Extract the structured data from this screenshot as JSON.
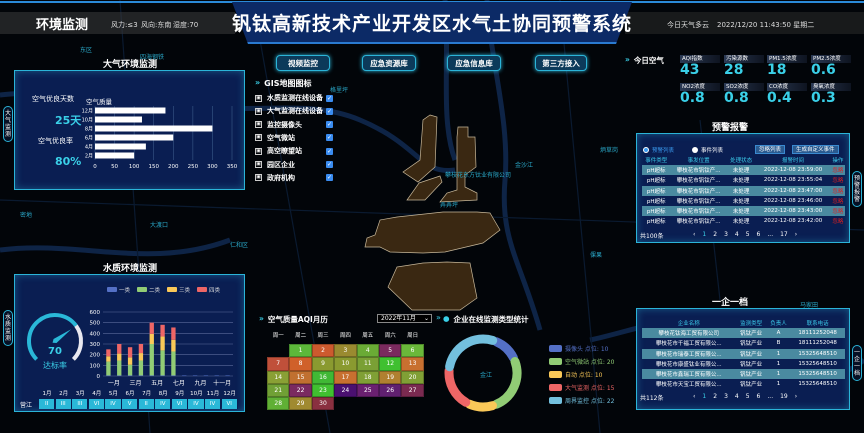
{
  "header": {
    "section_title": "环境监测",
    "wind_force": "风力:≤3",
    "wind_dir": "风向:东南",
    "humidity": "湿度:70",
    "title": "钒钛高新技术产业开发区水气土协同预警系统",
    "weather": "今日天气多云",
    "datetime": "2022/12/20 11:43:50 星期二"
  },
  "nav": [
    "视频监控",
    "应急资源库",
    "应急信息库",
    "第三方接入"
  ],
  "gis": {
    "title": "GIS地图图标",
    "layers": [
      {
        "label": "水质监测在线设备",
        "checked": true
      },
      {
        "label": "大气监测在线设备",
        "checked": true
      },
      {
        "label": "监控摄像头",
        "checked": true
      },
      {
        "label": "空气微站",
        "checked": true
      },
      {
        "label": "高空瞭望站",
        "checked": true
      },
      {
        "label": "园区企业",
        "checked": true
      },
      {
        "label": "政府机构",
        "checked": true
      }
    ]
  },
  "air_panel": {
    "title": "大气环境监测",
    "side_tab": "大气监测",
    "good_days_label": "空气优良天数",
    "good_days": "25天",
    "good_rate_label": "空气优良率",
    "good_rate": "80%",
    "chart_title": "空气质量"
  },
  "water_panel": {
    "title": "水质环境监测",
    "side_tab": "水质监测",
    "gauge_value": 70,
    "gauge_label": "达标率",
    "river": "营江",
    "months": [
      "1月",
      "2月",
      "3月",
      "4月",
      "5月",
      "6月",
      "7月",
      "8月",
      "9月",
      "10月",
      "11月",
      "12月"
    ],
    "grades": [
      "II",
      "III",
      "III",
      "VI",
      "IV",
      "V",
      "II",
      "IV",
      "VI",
      "IV",
      "IV",
      "VI"
    ]
  },
  "today_air": {
    "title": "今日空气",
    "metrics": [
      {
        "label": "AQI指数",
        "value": "43"
      },
      {
        "label": "污染源数",
        "value": "28"
      },
      {
        "label": "PM1.5浓度",
        "value": "18"
      },
      {
        "label": "PM2.5浓度",
        "value": "0.6"
      },
      {
        "label": "NO2浓度",
        "value": "0.8"
      },
      {
        "label": "SO2浓度",
        "value": "0.8"
      },
      {
        "label": "CO浓度",
        "value": "0.4"
      },
      {
        "label": "臭氧浓度",
        "value": "0.3"
      }
    ]
  },
  "alarm": {
    "title": "预警报警",
    "side_tab": "预警报警",
    "radio_alarm": "预警列表",
    "radio_event": "事件列表",
    "btn_ignore": "忽略列表",
    "btn_custom": "生成自定义事件",
    "columns": [
      "事件类型",
      "事发位置",
      "处理状态",
      "报警时间",
      "操作"
    ],
    "rows": [
      [
        "pH超标",
        "攀枝花市钒钛产...",
        "未处理",
        "2022-12-08 23:59:00",
        "忽略"
      ],
      [
        "pH超标",
        "攀枝花市钒钛产...",
        "未处理",
        "2022-12-08 23:55:04",
        "忽略"
      ],
      [
        "pH超标",
        "攀枝花市钒钛产...",
        "未处理",
        "2022-12-08 23:47:00",
        "忽略"
      ],
      [
        "pH超标",
        "攀枝花市钒钛产...",
        "未处理",
        "2022-12-08 23:46:00",
        "忽略"
      ],
      [
        "pH超标",
        "攀枝花市钒钛产...",
        "未处理",
        "2022-12-08 23:43:00",
        "忽略"
      ],
      [
        "pH超标",
        "攀枝花市钒钛产...",
        "未处理",
        "2022-12-08 23:42:00",
        "忽略"
      ]
    ],
    "total": "共100条",
    "pages": [
      "‹",
      "1",
      "2",
      "3",
      "4",
      "5",
      "6",
      "...",
      "17",
      "›"
    ],
    "current_page": "1"
  },
  "enterprise": {
    "title": "一企一档",
    "side_tab": "一企一档",
    "columns": [
      "企业名称",
      "监测类型",
      "负责人",
      "联系电话"
    ],
    "rows": [
      [
        "攀枝花钛海工贸有限公司",
        "钒钛产业",
        "A",
        "18111252048"
      ],
      [
        "攀枝花市千福工贸有限公...",
        "钒钛产业",
        "B",
        "18111252048"
      ],
      [
        "攀枝花市瑞泰工贸有限公...",
        "钒钛产业",
        "1",
        "15325648510"
      ],
      [
        "攀枝花市康盛钛业有限公...",
        "钒钛产业",
        "1",
        "15325648510"
      ],
      [
        "攀枝花市鑫瑞工贸有限公...",
        "钒钛产业",
        "1",
        "15325648510"
      ],
      [
        "攀枝花市天宝工贸有限公...",
        "钒钛产业",
        "1",
        "15325648510"
      ]
    ],
    "total": "共112条",
    "pages": [
      "‹",
      "1",
      "2",
      "3",
      "4",
      "5",
      "6",
      "...",
      "19",
      "›"
    ],
    "current_page": "1"
  },
  "aqi_calendar": {
    "title": "空气质量AQI月历",
    "month_select": "2022年11月",
    "weekdays": [
      "周一",
      "周二",
      "周三",
      "周四",
      "周五",
      "周六",
      "周日"
    ],
    "first_weekday_index": 1,
    "days": [
      {
        "d": "1",
        "color": "#5cb83a"
      },
      {
        "d": "2",
        "color": "#cc5a2e"
      },
      {
        "d": "3",
        "color": "#9a8a30"
      },
      {
        "d": "4",
        "color": "#6aab35"
      },
      {
        "d": "5",
        "color": "#7a2a5e"
      },
      {
        "d": "6",
        "color": "#6ab83a"
      },
      {
        "d": "7",
        "color": "#c0503a"
      },
      {
        "d": "8",
        "color": "#d0602a"
      },
      {
        "d": "9",
        "color": "#8a9a30"
      },
      {
        "d": "10",
        "color": "#8a9a30"
      },
      {
        "d": "11",
        "color": "#7aa035"
      },
      {
        "d": "12",
        "color": "#40c030"
      },
      {
        "d": "13",
        "color": "#c87030"
      },
      {
        "d": "14",
        "color": "#8aa035"
      },
      {
        "d": "15",
        "color": "#c07030"
      },
      {
        "d": "16",
        "color": "#40b835"
      },
      {
        "d": "17",
        "color": "#c87030"
      },
      {
        "d": "18",
        "color": "#80a035"
      },
      {
        "d": "19",
        "color": "#b08030"
      },
      {
        "d": "20",
        "color": "#80a035"
      },
      {
        "d": "21",
        "color": "#70a035"
      },
      {
        "d": "22",
        "color": "#7a2a60"
      },
      {
        "d": "23",
        "color": "#40c030"
      },
      {
        "d": "24",
        "color": "#4a1070"
      },
      {
        "d": "25",
        "color": "#6a2070"
      },
      {
        "d": "26",
        "color": "#602070"
      },
      {
        "d": "27",
        "color": "#7a2a50"
      },
      {
        "d": "28",
        "color": "#60b035"
      },
      {
        "d": "29",
        "color": "#a08a30"
      },
      {
        "d": "30",
        "color": "#8a3040"
      }
    ]
  },
  "map_labels": [
    "攀枝花东方钛业有限公司",
    "四海钢铁",
    "东区",
    "金沙江",
    "弄弄坪",
    "密地",
    "仁和区",
    "炳草岗",
    "马家田",
    "瓜子坪",
    "倮果",
    "大渡口",
    "金江",
    "格里坪"
  ],
  "chart_data": [
    {
      "type": "bar",
      "orientation": "horizontal",
      "title": "空气质量",
      "categories": [
        "12月",
        "10月",
        "8月",
        "6月",
        "4月",
        "2月"
      ],
      "values": [
        180,
        120,
        300,
        200,
        130,
        100
      ],
      "xlim": [
        0,
        350
      ],
      "xticks": [
        0,
        50,
        100,
        150,
        200,
        250,
        300,
        350
      ],
      "grid": true,
      "color": "#ffffff"
    },
    {
      "type": "bar",
      "stacked": true,
      "categories": [
        "一月",
        "二月",
        "三月",
        "四月",
        "五月",
        "六月",
        "七月",
        "八月",
        "九月",
        "十月",
        "十一月",
        "十二月"
      ],
      "xtick_labels_shown": [
        "一月",
        "三月",
        "五月",
        "七月",
        "九月",
        "十一月"
      ],
      "ylim": [
        0,
        600
      ],
      "yticks": [
        0,
        100,
        200,
        300,
        400,
        500,
        600
      ],
      "legend": "top",
      "grid": true,
      "series": [
        {
          "name": "一类",
          "color": "#5470c6",
          "values": [
            5,
            5,
            5,
            5,
            5,
            5,
            5,
            5,
            5,
            5,
            5,
            5
          ]
        },
        {
          "name": "二类",
          "color": "#91cc75",
          "values": [
            130,
            140,
            100,
            140,
            295,
            235,
            225,
            0,
            0,
            0,
            0,
            0
          ]
        },
        {
          "name": "三类",
          "color": "#fac858",
          "values": [
            50,
            65,
            70,
            70,
            95,
            130,
            110,
            0,
            0,
            0,
            0,
            0
          ]
        },
        {
          "name": "四类",
          "color": "#ee6666",
          "values": [
            65,
            90,
            95,
            85,
            105,
            110,
            115,
            0,
            0,
            0,
            0,
            0
          ]
        }
      ]
    },
    {
      "type": "pie",
      "donut": true,
      "title": "企业在线监测类型统计",
      "legend": "right",
      "slices": [
        {
          "name": "摄像头",
          "label": "摄像头 点位: 10",
          "value": 10,
          "color": "#5470c6"
        },
        {
          "name": "空气微站",
          "label": "空气微站 点位: 20",
          "value": 20,
          "color": "#91cc75"
        },
        {
          "name": "自动",
          "label": "自动 点位: 10",
          "value": 10,
          "color": "#fac858"
        },
        {
          "name": "大气监测",
          "label": "大气监测 点位: 15",
          "value": 15,
          "color": "#ee6666"
        },
        {
          "name": "周界监控",
          "label": "周界监控 点位: 22",
          "value": 22,
          "color": "#73c0de"
        }
      ]
    }
  ],
  "colors": {
    "accent": "#2bb4d8",
    "panel": "#0a1e52",
    "title_bar": "#0c2a66",
    "value": "#3ad0e8",
    "map_region": "#3a2812"
  }
}
